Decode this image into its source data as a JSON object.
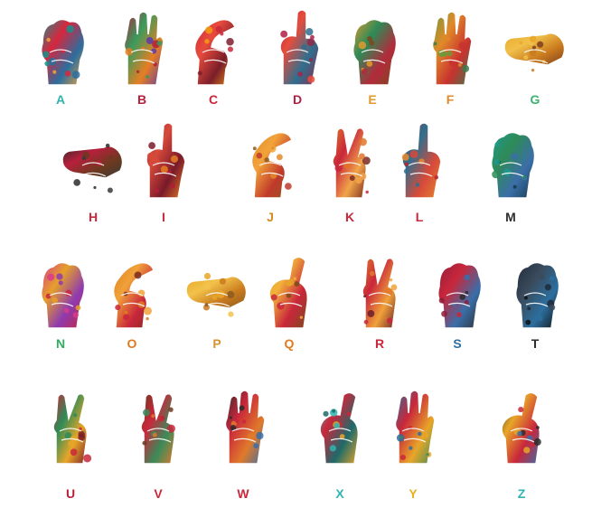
{
  "signs": [
    {
      "letter": "A",
      "color": "#2fb5b2",
      "palette": [
        "#1a8f8c",
        "#d7263d",
        "#2c6e9e",
        "#f2a33a"
      ]
    },
    {
      "letter": "B",
      "color": "#b51f3a",
      "palette": [
        "#b21f3a",
        "#3a9b5d",
        "#e67e22",
        "#5e3aa8"
      ]
    },
    {
      "letter": "C",
      "color": "#c9273b",
      "palette": [
        "#c9273b",
        "#e84b3c",
        "#7b1e2a",
        "#f39c12"
      ]
    },
    {
      "letter": "D",
      "color": "#b01f44",
      "palette": [
        "#b01f44",
        "#e74c3c",
        "#2f6f8f",
        "#8e2a4a"
      ]
    },
    {
      "letter": "E",
      "color": "#e39a2d",
      "palette": [
        "#e39a2d",
        "#2e8b57",
        "#b22b3b",
        "#7a4a1e"
      ]
    },
    {
      "letter": "F",
      "color": "#e18a29",
      "palette": [
        "#6a9a3a",
        "#e18a29",
        "#c8322f",
        "#3d7a4a"
      ]
    },
    {
      "letter": "G",
      "color": "#3cb26f",
      "palette": [
        "#e8a628",
        "#f1c04a",
        "#c97a1e",
        "#7c3e1c"
      ]
    },
    {
      "letter": "H",
      "color": "#c9273b",
      "palette": [
        "#2c2c2c",
        "#b81f3b",
        "#6b3a1f",
        "#3a3a3a"
      ]
    },
    {
      "letter": "I",
      "color": "#c9273b",
      "palette": [
        "#b21f3a",
        "#d64a3a",
        "#7a1a2a",
        "#e67e22"
      ]
    },
    {
      "letter": "J",
      "color": "#d38a1f",
      "palette": [
        "#e08a2a",
        "#f2a33a",
        "#c0392b",
        "#8e5a1e"
      ]
    },
    {
      "letter": "K",
      "color": "#c9273b",
      "palette": [
        "#e0762a",
        "#c9273b",
        "#f1a54a",
        "#7b2a1e"
      ]
    },
    {
      "letter": "L",
      "color": "#c9273b",
      "palette": [
        "#b8232e",
        "#2f6f8f",
        "#d64a3a",
        "#e68a2e"
      ]
    },
    {
      "letter": "M",
      "color": "#2c2c2c",
      "palette": [
        "#1d9a8f",
        "#2e8b57",
        "#3b6ea8",
        "#143a4a"
      ]
    },
    {
      "letter": "N",
      "color": "#2fae5f",
      "palette": [
        "#d83c8a",
        "#e5a02a",
        "#8e3ab0",
        "#c9273b"
      ]
    },
    {
      "letter": "O",
      "color": "#e07a1e",
      "palette": [
        "#e07a1e",
        "#f0a23a",
        "#c9273b",
        "#7a2a1e"
      ]
    },
    {
      "letter": "P",
      "color": "#d9922d",
      "palette": [
        "#e8a628",
        "#f2c24a",
        "#c97a1e",
        "#8a5a1e"
      ]
    },
    {
      "letter": "Q",
      "color": "#e07a1e",
      "palette": [
        "#e8a628",
        "#f2b23a",
        "#c9273b",
        "#7a4a1e"
      ]
    },
    {
      "letter": "R",
      "color": "#c9273b",
      "palette": [
        "#e07a2a",
        "#c9273b",
        "#f0a23a",
        "#6a1e2a"
      ]
    },
    {
      "letter": "S",
      "color": "#2c6e9e",
      "palette": [
        "#8e1e3a",
        "#c9273b",
        "#3a6ea8",
        "#2c2c2c"
      ]
    },
    {
      "letter": "T",
      "color": "#2c2c2c",
      "palette": [
        "#1e2a3a",
        "#3a4a5a",
        "#2c6e9e",
        "#111111"
      ]
    },
    {
      "letter": "U",
      "color": "#b81f3b",
      "palette": [
        "#c9273b",
        "#2e8b57",
        "#e8a628",
        "#7a1e2a"
      ]
    },
    {
      "letter": "V",
      "color": "#c9273b",
      "palette": [
        "#6a3a1e",
        "#c9273b",
        "#3a8b5a",
        "#e07a2a"
      ]
    },
    {
      "letter": "W",
      "color": "#c9273b",
      "palette": [
        "#2c2c2c",
        "#c9273b",
        "#e07a2a",
        "#3a6ea8"
      ]
    },
    {
      "letter": "X",
      "color": "#2fb5b2",
      "palette": [
        "#2fb5b2",
        "#c9273b",
        "#1e6a6a",
        "#e8a628"
      ]
    },
    {
      "letter": "Y",
      "color": "#e5b21f",
      "palette": [
        "#2c6e9e",
        "#c9273b",
        "#e8a628",
        "#3a8b5a"
      ]
    },
    {
      "letter": "Z",
      "color": "#2fb5b2",
      "palette": [
        "#2c2c2c",
        "#e8a628",
        "#c9273b",
        "#3a6ea8"
      ]
    }
  ]
}
